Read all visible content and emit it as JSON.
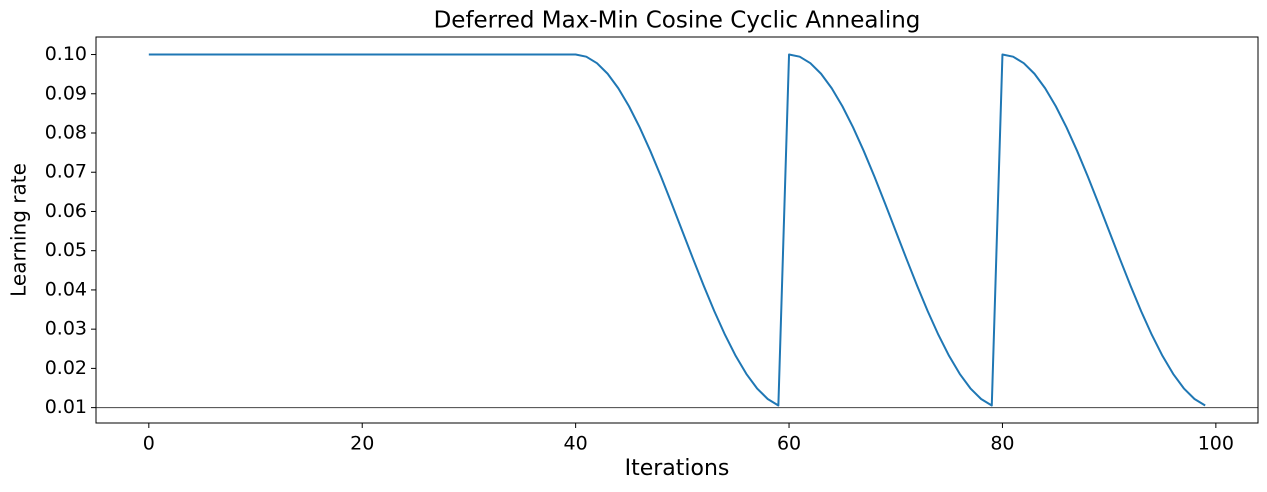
{
  "chart_data": {
    "type": "line",
    "title": "Deferred Max-Min Cosine Cyclic Annealing",
    "xlabel": "Iterations",
    "ylabel": "Learning rate",
    "x": [
      0,
      1,
      2,
      3,
      4,
      5,
      6,
      7,
      8,
      9,
      10,
      11,
      12,
      13,
      14,
      15,
      16,
      17,
      18,
      19,
      20,
      21,
      22,
      23,
      24,
      25,
      26,
      27,
      28,
      29,
      30,
      31,
      32,
      33,
      34,
      35,
      36,
      37,
      38,
      39,
      40,
      41,
      42,
      43,
      44,
      45,
      46,
      47,
      48,
      49,
      50,
      51,
      52,
      53,
      54,
      55,
      56,
      57,
      58,
      59,
      60,
      61,
      62,
      63,
      64,
      65,
      66,
      67,
      68,
      69,
      70,
      71,
      72,
      73,
      74,
      75,
      76,
      77,
      78,
      79,
      80,
      81,
      82,
      83,
      84,
      85,
      86,
      87,
      88,
      89,
      90,
      91,
      92,
      93,
      94,
      95,
      96,
      97,
      98,
      99
    ],
    "series": [
      {
        "name": "Learning rate",
        "color": "#1f77b4",
        "values": [
          0.1,
          0.1,
          0.1,
          0.1,
          0.1,
          0.1,
          0.1,
          0.1,
          0.1,
          0.1,
          0.1,
          0.1,
          0.1,
          0.1,
          0.1,
          0.1,
          0.1,
          0.1,
          0.1,
          0.1,
          0.1,
          0.1,
          0.1,
          0.1,
          0.1,
          0.1,
          0.1,
          0.1,
          0.1,
          0.1,
          0.1,
          0.1,
          0.1,
          0.1,
          0.1,
          0.1,
          0.1,
          0.1,
          0.1,
          0.1,
          0.1,
          0.09945,
          0.0978,
          0.0951,
          0.09141,
          0.08682,
          0.08145,
          0.07543,
          0.06891,
          0.06204,
          0.055,
          0.04796,
          0.04109,
          0.03457,
          0.02855,
          0.02318,
          0.01859,
          0.0149,
          0.0122,
          0.01055,
          0.1,
          0.09945,
          0.0978,
          0.0951,
          0.09141,
          0.08682,
          0.08145,
          0.07543,
          0.06891,
          0.06204,
          0.055,
          0.04796,
          0.04109,
          0.03457,
          0.02855,
          0.02318,
          0.01859,
          0.0149,
          0.0122,
          0.01055,
          0.1,
          0.09945,
          0.0978,
          0.0951,
          0.09141,
          0.08682,
          0.08145,
          0.07543,
          0.06891,
          0.06204,
          0.055,
          0.04796,
          0.04109,
          0.03457,
          0.02855,
          0.02318,
          0.01859,
          0.0149,
          0.0122,
          0.01055
        ]
      }
    ],
    "hline": {
      "value": 0.01,
      "color": "#444444"
    },
    "xlim": [
      -4.95,
      103.95
    ],
    "ylim": [
      0.00608,
      0.10447
    ],
    "xticks": [
      0,
      20,
      40,
      60,
      80,
      100
    ],
    "yticks": [
      0.01,
      0.02,
      0.03,
      0.04,
      0.05,
      0.06,
      0.07,
      0.08,
      0.09,
      {
        "value": 0.1,
        "label": "0.10"
      }
    ],
    "grid": false
  }
}
